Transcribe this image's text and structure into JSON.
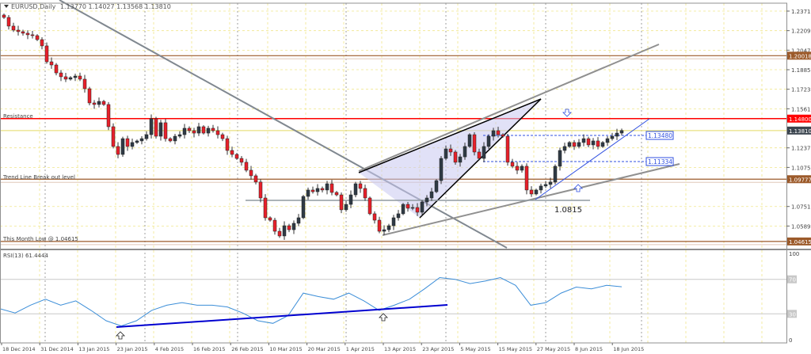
{
  "header": {
    "symbol": "EURUSD",
    "timeframe": "Daily",
    "ohlc": "1.13770 1.14027 1.13568 1.13810"
  },
  "colors": {
    "bull": "#2f3a45",
    "bear": "#e8202a",
    "resistance": "#ff0000",
    "level": "#9c5a2a",
    "current": "#3c4650",
    "rsi": "#3c8ed8",
    "trend_blue": "#0000d0",
    "grid": "#f0e68c"
  },
  "chart_data": {
    "type": "candlestick",
    "title": "EURUSD Daily",
    "x_ticks": [
      "18 Dec 2014",
      "31 Dec 2014",
      "13 Jan 2015",
      "23 Jan 2015",
      "4 Feb 2015",
      "16 Feb 2015",
      "26 Feb 2015",
      "10 Mar 2015",
      "20 Mar 2015",
      "1 Apr 2015",
      "13 Apr 2015",
      "23 Apr 2015",
      "5 May 2015",
      "15 May 2015",
      "27 May 2015",
      "8 Jun 2015",
      "18 Jun 2015"
    ],
    "y_ticks": [
      "1.23715",
      "1.22095",
      "1.20475",
      "1.18855",
      "1.17235",
      "1.15615",
      "1.12375",
      "1.10755",
      "1.07515",
      "1.05895"
    ],
    "ylim": [
      1.04275,
      1.23715
    ],
    "grid": true,
    "closes": [
      1.2319,
      1.2247,
      1.2214,
      1.2201,
      1.2188,
      1.2175,
      1.2168,
      1.2135,
      1.2083,
      1.1951,
      1.1925,
      1.1859,
      1.1827,
      1.1807,
      1.182,
      1.1833,
      1.1807,
      1.1728,
      1.161,
      1.1597,
      1.1623,
      1.1597,
      1.1413,
      1.1249,
      1.1183,
      1.1314,
      1.1249,
      1.1282,
      1.1295,
      1.1314,
      1.1347,
      1.1479,
      1.1334,
      1.1446,
      1.1314,
      1.1295,
      1.1334,
      1.1347,
      1.14,
      1.138,
      1.136,
      1.1413,
      1.136,
      1.14,
      1.138,
      1.1347,
      1.1314,
      1.1216,
      1.1183,
      1.115,
      1.1118,
      1.1052,
      1.1006,
      1.0954,
      1.0822,
      1.0658,
      1.0638,
      1.0546,
      1.0507,
      1.0592,
      1.0559,
      1.0612,
      1.0658,
      1.0835,
      1.0888,
      1.0874,
      1.0901,
      1.0888,
      1.094,
      1.0868,
      1.0848,
      1.0724,
      1.0769,
      1.0848,
      1.094,
      1.0901,
      1.0822,
      1.0691,
      1.0638,
      1.0546,
      1.0559,
      1.0592,
      1.0658,
      1.0691,
      1.0769,
      1.0737,
      1.0743,
      1.0704,
      1.0789,
      1.0822,
      1.0874,
      1.0966,
      1.115,
      1.1229,
      1.1203,
      1.1118,
      1.1163,
      1.1249,
      1.1347,
      1.1203,
      1.115,
      1.1249,
      1.1334,
      1.138,
      1.1347,
      1.1334,
      1.1118,
      1.1085,
      1.1052,
      1.1085,
      1.0888,
      1.0855,
      1.0888,
      1.0921,
      1.0934,
      1.0954,
      1.1085,
      1.1216,
      1.1249,
      1.1282,
      1.1249,
      1.1282,
      1.1314,
      1.1262,
      1.1295,
      1.1249,
      1.1282,
      1.1314,
      1.1334,
      1.136,
      1.1381
    ],
    "levels": [
      {
        "label": "1.20018",
        "value": 1.20018,
        "style": "level"
      },
      {
        "label": "1.14800",
        "value": 1.148,
        "style": "resistance"
      },
      {
        "label": "1.13810",
        "value": 1.1381,
        "style": "current"
      },
      {
        "label": "1.09777",
        "value": 1.09777,
        "style": "level"
      },
      {
        "label": "1.04615",
        "value": 1.04615,
        "style": "level"
      }
    ],
    "annotations": {
      "resistance": "Resistance",
      "breakout": "Trend Line Break out level",
      "month_low": "This Month Low @ 1.04615",
      "support": "1.0815",
      "level_a": "1.13480",
      "level_b": "1.11334"
    },
    "rsi": {
      "label": "RSI(13) 61.4444",
      "ticks": [
        "100",
        "70",
        "30",
        "0"
      ],
      "levels": [
        70,
        30
      ],
      "values": [
        36,
        31,
        40,
        47,
        40,
        45,
        34,
        22,
        16,
        22,
        34,
        40,
        43,
        40,
        40,
        38,
        31,
        22,
        19,
        28,
        54,
        50,
        47,
        54,
        45,
        34,
        40,
        47,
        59,
        72,
        70,
        65,
        68,
        72,
        63,
        40,
        43,
        54,
        61,
        59,
        63,
        61.4
      ]
    }
  }
}
